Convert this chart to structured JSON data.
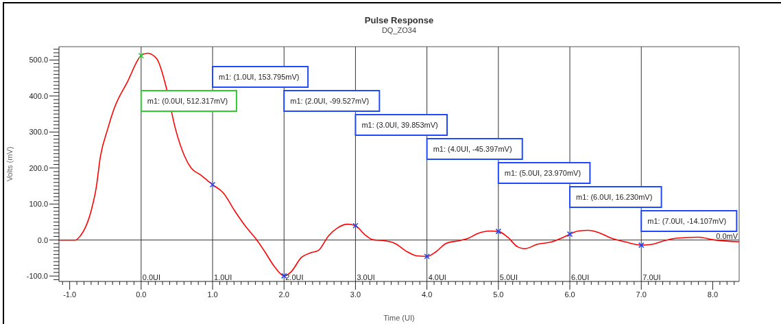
{
  "chart_data": {
    "type": "line",
    "title": "Pulse Response",
    "subtitle": "DQ_ZO34",
    "xlabel": "Time (UI)",
    "ylabel": "Volts (mV)",
    "xlim": [
      -1.15,
      8.37
    ],
    "ylim": [
      -115,
      537
    ],
    "xticks": [
      {
        "value": -1.1,
        "label": null
      },
      {
        "value": -1,
        "label": "-1.0"
      },
      {
        "value": -0.9,
        "label": null
      },
      {
        "value": -0.8,
        "label": null
      },
      {
        "value": -0.7,
        "label": null
      },
      {
        "value": -0.6,
        "label": null
      },
      {
        "value": -0.5,
        "label": null
      },
      {
        "value": -0.4,
        "label": null
      },
      {
        "value": -0.3,
        "label": null
      },
      {
        "value": -0.2,
        "label": null
      },
      {
        "value": -0.1,
        "label": null
      },
      {
        "value": 0,
        "label": "0.0"
      },
      {
        "value": 0.1,
        "label": null
      },
      {
        "value": 0.2,
        "label": null
      },
      {
        "value": 0.3,
        "label": null
      },
      {
        "value": 0.4,
        "label": null
      },
      {
        "value": 0.5,
        "label": null
      },
      {
        "value": 0.6,
        "label": null
      },
      {
        "value": 0.7,
        "label": null
      },
      {
        "value": 0.8,
        "label": null
      },
      {
        "value": 0.9,
        "label": null
      },
      {
        "value": 1,
        "label": "1.0"
      },
      {
        "value": 1.1,
        "label": null
      },
      {
        "value": 1.2,
        "label": null
      },
      {
        "value": 1.3,
        "label": null
      },
      {
        "value": 1.4,
        "label": null
      },
      {
        "value": 1.5,
        "label": null
      },
      {
        "value": 1.6,
        "label": null
      },
      {
        "value": 1.7,
        "label": null
      },
      {
        "value": 1.8,
        "label": null
      },
      {
        "value": 1.9,
        "label": null
      },
      {
        "value": 2,
        "label": "2.0"
      },
      {
        "value": 2.1,
        "label": null
      },
      {
        "value": 2.2,
        "label": null
      },
      {
        "value": 2.3,
        "label": null
      },
      {
        "value": 2.4,
        "label": null
      },
      {
        "value": 2.5,
        "label": null
      },
      {
        "value": 2.6,
        "label": null
      },
      {
        "value": 2.7,
        "label": null
      },
      {
        "value": 2.8,
        "label": null
      },
      {
        "value": 2.9,
        "label": null
      },
      {
        "value": 3,
        "label": "3.0"
      },
      {
        "value": 3.1,
        "label": null
      },
      {
        "value": 3.2,
        "label": null
      },
      {
        "value": 3.3,
        "label": null
      },
      {
        "value": 3.4,
        "label": null
      },
      {
        "value": 3.5,
        "label": null
      },
      {
        "value": 3.6,
        "label": null
      },
      {
        "value": 3.7,
        "label": null
      },
      {
        "value": 3.8,
        "label": null
      },
      {
        "value": 3.9,
        "label": null
      },
      {
        "value": 4,
        "label": "4.0"
      },
      {
        "value": 4.1,
        "label": null
      },
      {
        "value": 4.2,
        "label": null
      },
      {
        "value": 4.3,
        "label": null
      },
      {
        "value": 4.4,
        "label": null
      },
      {
        "value": 4.5,
        "label": null
      },
      {
        "value": 4.6,
        "label": null
      },
      {
        "value": 4.7,
        "label": null
      },
      {
        "value": 4.8,
        "label": null
      },
      {
        "value": 4.9,
        "label": null
      },
      {
        "value": 5,
        "label": "5.0"
      },
      {
        "value": 5.1,
        "label": null
      },
      {
        "value": 5.2,
        "label": null
      },
      {
        "value": 5.3,
        "label": null
      },
      {
        "value": 5.4,
        "label": null
      },
      {
        "value": 5.5,
        "label": null
      },
      {
        "value": 5.6,
        "label": null
      },
      {
        "value": 5.7,
        "label": null
      },
      {
        "value": 5.8,
        "label": null
      },
      {
        "value": 5.9,
        "label": null
      },
      {
        "value": 6,
        "label": "6.0"
      },
      {
        "value": 6.1,
        "label": null
      },
      {
        "value": 6.2,
        "label": null
      },
      {
        "value": 6.3,
        "label": null
      },
      {
        "value": 6.4,
        "label": null
      },
      {
        "value": 6.5,
        "label": null
      },
      {
        "value": 6.6,
        "label": null
      },
      {
        "value": 6.7,
        "label": null
      },
      {
        "value": 6.8,
        "label": null
      },
      {
        "value": 6.9,
        "label": null
      },
      {
        "value": 7,
        "label": "7.0"
      },
      {
        "value": 7.1,
        "label": null
      },
      {
        "value": 7.2,
        "label": null
      },
      {
        "value": 7.3,
        "label": null
      },
      {
        "value": 7.4,
        "label": null
      },
      {
        "value": 7.5,
        "label": null
      },
      {
        "value": 7.6,
        "label": null
      },
      {
        "value": 7.7,
        "label": null
      },
      {
        "value": 7.8,
        "label": null
      },
      {
        "value": 7.9,
        "label": null
      },
      {
        "value": 8,
        "label": "8.0"
      },
      {
        "value": 8.1,
        "label": null
      },
      {
        "value": 8.2,
        "label": null
      },
      {
        "value": 8.3,
        "label": null
      }
    ],
    "yticks": [
      {
        "value": -110,
        "label": null
      },
      {
        "value": -100,
        "label": "-100.0"
      },
      {
        "value": -90,
        "label": null
      },
      {
        "value": -80,
        "label": null
      },
      {
        "value": -70,
        "label": null
      },
      {
        "value": -60,
        "label": null
      },
      {
        "value": -50,
        "label": null
      },
      {
        "value": -40,
        "label": null
      },
      {
        "value": -30,
        "label": null
      },
      {
        "value": -20,
        "label": null
      },
      {
        "value": -10,
        "label": null
      },
      {
        "value": 0,
        "label": "0.0"
      },
      {
        "value": 10,
        "label": null
      },
      {
        "value": 20,
        "label": null
      },
      {
        "value": 30,
        "label": null
      },
      {
        "value": 40,
        "label": null
      },
      {
        "value": 50,
        "label": null
      },
      {
        "value": 60,
        "label": null
      },
      {
        "value": 70,
        "label": null
      },
      {
        "value": 80,
        "label": null
      },
      {
        "value": 90,
        "label": null
      },
      {
        "value": 100,
        "label": "100.0"
      },
      {
        "value": 110,
        "label": null
      },
      {
        "value": 120,
        "label": null
      },
      {
        "value": 130,
        "label": null
      },
      {
        "value": 140,
        "label": null
      },
      {
        "value": 150,
        "label": null
      },
      {
        "value": 160,
        "label": null
      },
      {
        "value": 170,
        "label": null
      },
      {
        "value": 180,
        "label": null
      },
      {
        "value": 190,
        "label": null
      },
      {
        "value": 200,
        "label": "200.0"
      },
      {
        "value": 210,
        "label": null
      },
      {
        "value": 220,
        "label": null
      },
      {
        "value": 230,
        "label": null
      },
      {
        "value": 240,
        "label": null
      },
      {
        "value": 250,
        "label": null
      },
      {
        "value": 260,
        "label": null
      },
      {
        "value": 270,
        "label": null
      },
      {
        "value": 280,
        "label": null
      },
      {
        "value": 290,
        "label": null
      },
      {
        "value": 300,
        "label": "300.0"
      },
      {
        "value": 310,
        "label": null
      },
      {
        "value": 320,
        "label": null
      },
      {
        "value": 330,
        "label": null
      },
      {
        "value": 340,
        "label": null
      },
      {
        "value": 350,
        "label": null
      },
      {
        "value": 360,
        "label": null
      },
      {
        "value": 370,
        "label": null
      },
      {
        "value": 380,
        "label": null
      },
      {
        "value": 390,
        "label": null
      },
      {
        "value": 400,
        "label": "400.0"
      },
      {
        "value": 410,
        "label": null
      },
      {
        "value": 420,
        "label": null
      },
      {
        "value": 430,
        "label": null
      },
      {
        "value": 440,
        "label": null
      },
      {
        "value": 450,
        "label": null
      },
      {
        "value": 460,
        "label": null
      },
      {
        "value": 470,
        "label": null
      },
      {
        "value": 480,
        "label": null
      },
      {
        "value": 490,
        "label": null
      },
      {
        "value": 500,
        "label": "500.0"
      },
      {
        "value": 510,
        "label": null
      },
      {
        "value": 520,
        "label": null
      },
      {
        "value": 530,
        "label": null
      }
    ],
    "series": [
      {
        "color": "#ff0000",
        "line_style": "solid",
        "x": [
          -1.15,
          -0.92,
          -0.85,
          -0.79,
          -0.7,
          -0.63,
          -0.57,
          -0.47,
          -0.38,
          -0.19,
          0,
          0.09,
          0.22,
          0.35,
          0.48,
          0.61,
          0.7,
          0.83,
          1,
          1.15,
          1.31,
          1.47,
          1.6,
          1.73,
          1.87,
          2,
          2.1,
          2.24,
          2.38,
          2.48,
          2.62,
          2.75,
          2.89,
          3,
          3.13,
          3.24,
          3.41,
          3.55,
          3.72,
          3.86,
          4,
          4.13,
          4.27,
          4.47,
          4.58,
          4.71,
          4.88,
          5,
          5.13,
          5.27,
          5.37,
          5.54,
          5.75,
          5.88,
          6,
          6.12,
          6.26,
          6.4,
          6.57,
          6.77,
          7,
          7.15,
          7.32,
          7.49,
          7.8,
          8,
          8.37
        ],
        "values": [
          0,
          0,
          12,
          31,
          81,
          144,
          232,
          307,
          364,
          440,
          512.317,
          519,
          503,
          425,
          309,
          232,
          200,
          181,
          153.795,
          131,
          81,
          36,
          5,
          -32,
          -75,
          -99.527,
          -88,
          -49,
          -35,
          -29,
          11,
          34,
          44,
          39.853,
          15,
          1,
          -2,
          -9,
          -32,
          -44,
          -45.397,
          -32,
          -9,
          -1,
          5,
          18,
          25,
          23.97,
          8,
          -19,
          -24,
          -12,
          -5,
          5,
          16.23,
          25,
          27,
          21,
          6,
          -5,
          -14.107,
          -12,
          -2,
          5,
          8,
          1,
          -5
        ]
      },
      {
        "type": "scatter",
        "marker": "cross",
        "x": [
          0,
          1,
          2,
          3,
          4,
          5,
          6,
          7
        ],
        "values": [
          512.317,
          153.795,
          -99.527,
          39.853,
          -45.397,
          23.97,
          16.23,
          -14.107
        ],
        "colors": [
          "#2ecc2e",
          "#1f48ff",
          "#1f48ff",
          "#1f48ff",
          "#1f48ff",
          "#1f48ff",
          "#1f48ff",
          "#1f48ff"
        ]
      }
    ],
    "ref_lines": [
      {
        "axis": "x",
        "value": 0,
        "label": "0.0UI"
      },
      {
        "axis": "x",
        "value": 1,
        "label": "1.0UI"
      },
      {
        "axis": "x",
        "value": 2,
        "label": "2.0UI"
      },
      {
        "axis": "x",
        "value": 3,
        "label": "3.0UI"
      },
      {
        "axis": "x",
        "value": 4,
        "label": "4.0UI"
      },
      {
        "axis": "x",
        "value": 5,
        "label": "5.0UI"
      },
      {
        "axis": "x",
        "value": 6,
        "label": "6.0UI"
      },
      {
        "axis": "x",
        "value": 7,
        "label": "7.0UI"
      },
      {
        "axis": "y",
        "value": 0,
        "label": "0.0mV"
      }
    ],
    "annotations": [
      "m1: (0.0UI, 512.317mV)",
      "m1: (1.0UI, 153.795mV)",
      "m1: (2.0UI, -99.527mV)",
      "m1: (3.0UI, 39.853mV)",
      "m1: (4.0UI, -45.397mV)",
      "m1: (5.0UI, 23.970mV)",
      "m1: (6.0UI, 16.230mV)",
      "m1: (7.0UI, -14.107mV)"
    ]
  }
}
